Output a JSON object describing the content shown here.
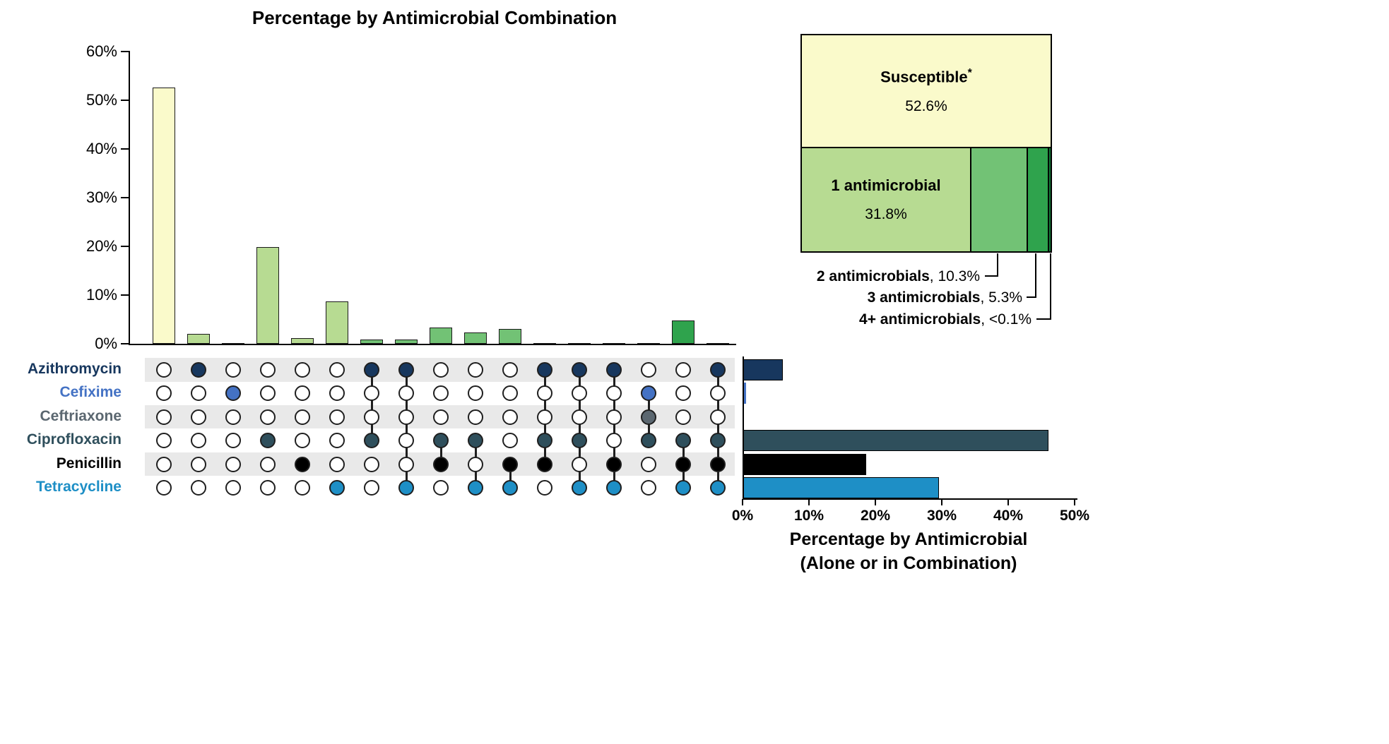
{
  "antimicrobials": [
    {
      "name": "Azithromycin",
      "color": "#17375E",
      "total_pct": 6.0
    },
    {
      "name": "Cefixime",
      "color": "#4472C4",
      "total_pct": 0.4
    },
    {
      "name": "Ceftriaxone",
      "color": "#5B6770",
      "total_pct": 0.1
    },
    {
      "name": "Ciprofloxacin",
      "color": "#2F4F5C",
      "total_pct": 46.0
    },
    {
      "name": "Penicillin",
      "color": "#000000",
      "total_pct": 18.5
    },
    {
      "name": "Tetracycline",
      "color": "#1E8FC6",
      "total_pct": 29.5
    }
  ],
  "colors": {
    "susceptible": "#FAFACB",
    "combo1": "#B7DB92",
    "combo2": "#72C275",
    "combo3": "#2FA34D",
    "combo4": "#117A38",
    "stripe": "#E9E9E9",
    "axis": "#000000"
  },
  "chart_data": [
    {
      "type": "bar",
      "name": "upset-combination-chart",
      "title": "Percentage by Antimicrobial Combination",
      "ylim": [
        0,
        60
      ],
      "ytick_labels": [
        "0%",
        "10%",
        "20%",
        "30%",
        "40%",
        "50%",
        "60%"
      ],
      "grid": false,
      "columns": [
        {
          "sets": [],
          "value": 52.6,
          "group": "susceptible"
        },
        {
          "sets": [
            "Azithromycin"
          ],
          "value": 2.1,
          "group": "combo1"
        },
        {
          "sets": [
            "Cefixime"
          ],
          "value": 0.1,
          "group": "combo1"
        },
        {
          "sets": [
            "Ciprofloxacin"
          ],
          "value": 19.8,
          "group": "combo1"
        },
        {
          "sets": [
            "Penicillin"
          ],
          "value": 1.1,
          "group": "combo1"
        },
        {
          "sets": [
            "Tetracycline"
          ],
          "value": 8.7,
          "group": "combo1"
        },
        {
          "sets": [
            "Azithromycin",
            "Ciprofloxacin"
          ],
          "value": 0.8,
          "group": "combo2"
        },
        {
          "sets": [
            "Azithromycin",
            "Tetracycline"
          ],
          "value": 0.8,
          "group": "combo2"
        },
        {
          "sets": [
            "Ciprofloxacin",
            "Penicillin"
          ],
          "value": 3.4,
          "group": "combo2"
        },
        {
          "sets": [
            "Ciprofloxacin",
            "Tetracycline"
          ],
          "value": 2.3,
          "group": "combo2"
        },
        {
          "sets": [
            "Penicillin",
            "Tetracycline"
          ],
          "value": 3.0,
          "group": "combo2"
        },
        {
          "sets": [
            "Azithromycin",
            "Ciprofloxacin",
            "Penicillin"
          ],
          "value": 0.1,
          "group": "combo3"
        },
        {
          "sets": [
            "Azithromycin",
            "Ciprofloxacin",
            "Tetracycline"
          ],
          "value": 0.2,
          "group": "combo3"
        },
        {
          "sets": [
            "Azithromycin",
            "Penicillin",
            "Tetracycline"
          ],
          "value": 0.1,
          "group": "combo3"
        },
        {
          "sets": [
            "Cefixime",
            "Ceftriaxone",
            "Ciprofloxacin"
          ],
          "value": 0.1,
          "group": "combo3"
        },
        {
          "sets": [
            "Ciprofloxacin",
            "Penicillin",
            "Tetracycline"
          ],
          "value": 4.8,
          "group": "combo3"
        },
        {
          "sets": [
            "Azithromycin",
            "Ciprofloxacin",
            "Penicillin",
            "Tetracycline"
          ],
          "value": 0.1,
          "group": "combo4"
        }
      ]
    },
    {
      "type": "bar",
      "name": "antimicrobial-totals-chart",
      "orientation": "horizontal",
      "title_line1": "Percentage by Antimicrobial",
      "title_line2": "(Alone or in Combination)",
      "xlim": [
        0,
        50
      ],
      "xtick_labels": [
        "0%",
        "10%",
        "20%",
        "30%",
        "40%",
        "50%"
      ],
      "categories": [
        "Azithromycin",
        "Cefixime",
        "Ceftriaxone",
        "Ciprofloxacin",
        "Penicillin",
        "Tetracycline"
      ],
      "values": [
        6.0,
        0.4,
        0.1,
        46.0,
        18.5,
        29.5
      ]
    }
  ],
  "summary": {
    "susceptible": {
      "label": "Susceptible",
      "mark": "*",
      "value": "52.6%"
    },
    "one": {
      "label": "1 antimicrobial",
      "value": "31.8%"
    },
    "two": {
      "label": "2 antimicrobials",
      "suffix": ", 10.3%"
    },
    "three": {
      "label": "3 antimicrobials",
      "suffix": ", 5.3%"
    },
    "four": {
      "label": "4+ antimicrobials",
      "suffix": ", <0.1%"
    }
  }
}
